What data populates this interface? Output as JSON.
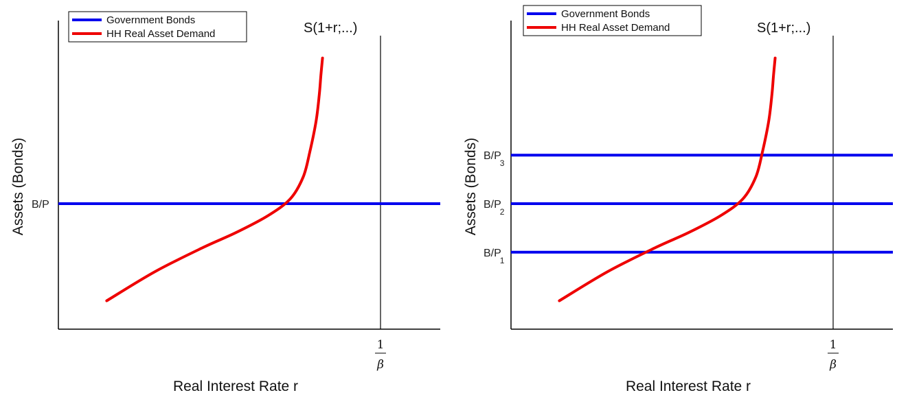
{
  "chart_data": [
    {
      "type": "line",
      "xlabel": "Real Interest Rate r",
      "ylabel": "Assets (Bonds)",
      "x_tick": {
        "numerator": "1",
        "denominator": "β"
      },
      "curve_label": "S(1+r;...)",
      "legend": {
        "placement": "top-left",
        "entries": [
          {
            "label": "Government Bonds",
            "color": "#0000ee"
          },
          {
            "label": "HH Real Asset Demand",
            "color": "#ee0000"
          }
        ]
      },
      "grid": false,
      "series": [
        {
          "name": "Government Bonds",
          "kind": "horizontal",
          "levels": [
            {
              "label": "B/P",
              "sub": "",
              "y": 0.5
            }
          ]
        },
        {
          "name": "HH Real Asset Demand",
          "kind": "curve",
          "x": [
            0.15,
            0.3,
            0.45,
            0.55,
            0.65,
            0.72,
            0.76,
            0.78,
            0.8,
            0.81,
            0.815,
            0.82
          ],
          "y": [
            0.1,
            0.22,
            0.32,
            0.38,
            0.45,
            0.52,
            0.61,
            0.71,
            0.84,
            0.95,
            1.03,
            1.1
          ]
        }
      ]
    },
    {
      "type": "line",
      "xlabel": "Real Interest Rate r",
      "ylabel": "Assets (Bonds)",
      "x_tick": {
        "numerator": "1",
        "denominator": "β"
      },
      "curve_label": "S(1+r;...)",
      "legend": {
        "placement": "top-left",
        "entries": [
          {
            "label": "Government Bonds",
            "color": "#0000ee"
          },
          {
            "label": "HH Real Asset Demand",
            "color": "#ee0000"
          }
        ]
      },
      "grid": false,
      "series": [
        {
          "name": "Government Bonds",
          "kind": "horizontal",
          "levels": [
            {
              "label": "B/P",
              "sub": "3",
              "y": 0.7
            },
            {
              "label": "B/P",
              "sub": "2",
              "y": 0.5
            },
            {
              "label": "B/P",
              "sub": "1",
              "y": 0.3
            }
          ]
        },
        {
          "name": "HH Real Asset Demand",
          "kind": "curve",
          "x": [
            0.15,
            0.3,
            0.45,
            0.55,
            0.65,
            0.72,
            0.76,
            0.78,
            0.8,
            0.81,
            0.815,
            0.82
          ],
          "y": [
            0.1,
            0.22,
            0.32,
            0.38,
            0.45,
            0.52,
            0.61,
            0.71,
            0.84,
            0.95,
            1.03,
            1.1
          ]
        }
      ]
    }
  ]
}
